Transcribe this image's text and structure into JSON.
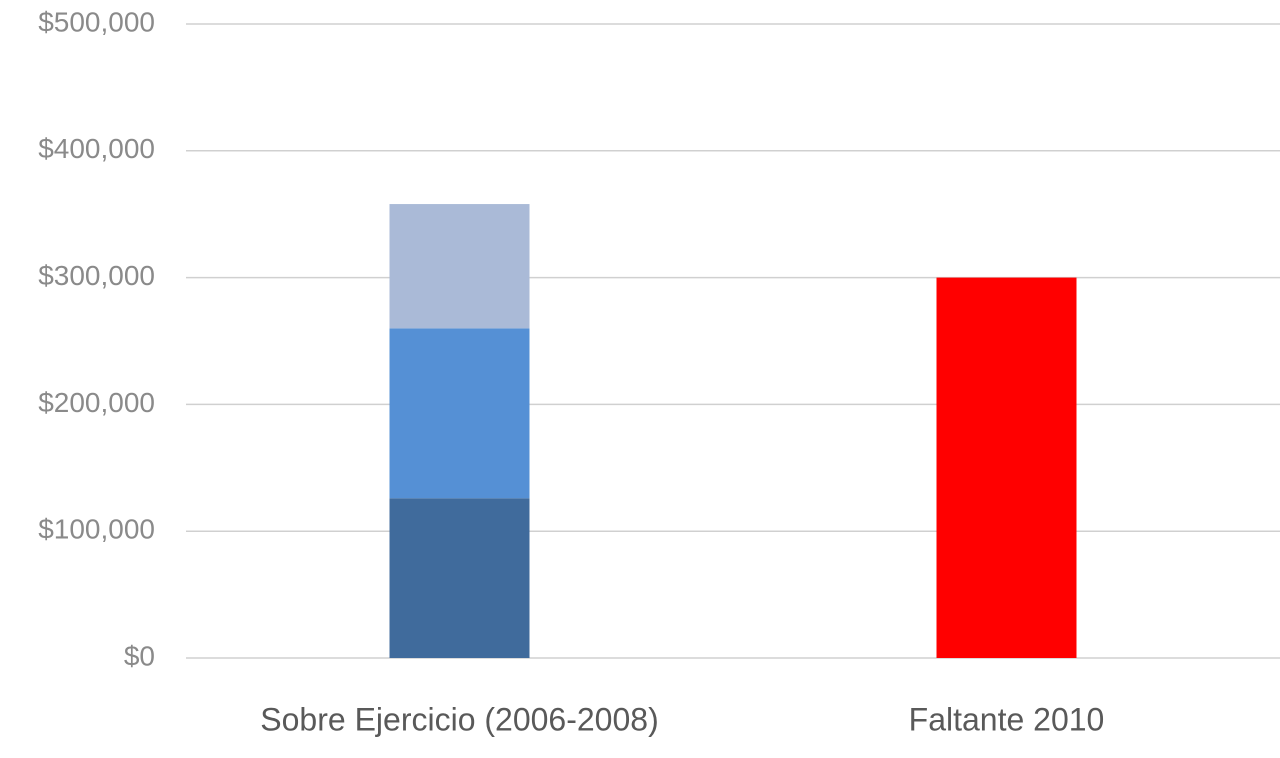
{
  "chart_data": {
    "type": "bar",
    "stacked": true,
    "categories": [
      "Sobre Ejercicio (2006-2008)",
      "Faltante 2010"
    ],
    "series": [
      {
        "color": "#406b9c",
        "values": [
          126000,
          null
        ]
      },
      {
        "color": "#5590d5",
        "values": [
          134000,
          null
        ]
      },
      {
        "color": "#aabad7",
        "values": [
          98000,
          null
        ]
      },
      {
        "color": "#ff0000",
        "values": [
          null,
          300000
        ]
      }
    ],
    "ylim": [
      0,
      500000
    ],
    "yticks": [
      {
        "value": 0,
        "label": "$0"
      },
      {
        "value": 100000,
        "label": "$100,000"
      },
      {
        "value": 200000,
        "label": "$200,000"
      },
      {
        "value": 300000,
        "label": "$300,000"
      },
      {
        "value": 400000,
        "label": "$400,000"
      },
      {
        "value": 500000,
        "label": "$500,000"
      }
    ],
    "grid": true
  }
}
